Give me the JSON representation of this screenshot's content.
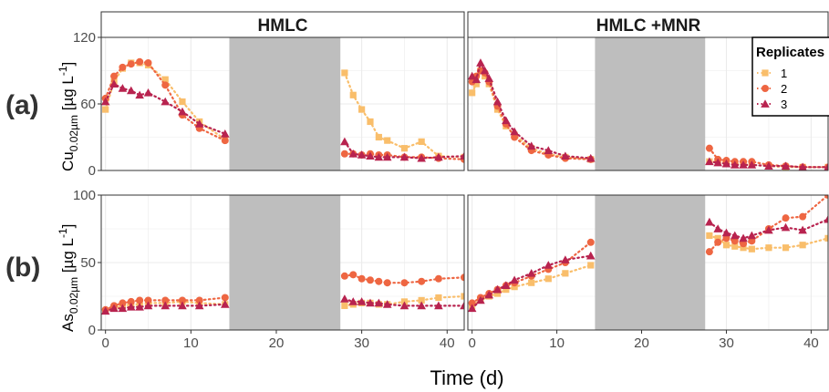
{
  "figure": {
    "row_labels": [
      "(a)",
      "(b)"
    ],
    "panel_titles": [
      "HMLC",
      "HMLC +MNR"
    ],
    "xlabel": "Time (d)",
    "legend": {
      "title": "Replicates",
      "position": "top-right",
      "entries": [
        "1",
        "2",
        "3"
      ]
    },
    "ylabel_a": {
      "main": "Cu",
      "sub": "0.02µm",
      "unit_open": " [µg L",
      "unit_sup": "-1",
      "unit_close": "]"
    },
    "ylabel_b": {
      "main": "As",
      "sub": "0.02µm",
      "unit_open": " [µg L",
      "unit_sup": "-1",
      "unit_close": "]"
    },
    "colors": {
      "rep1": "#F9BE6B",
      "rep2": "#EE6642",
      "rep3": "#B8234F",
      "shade": "#BEBEBE",
      "grid": "#EBEBEB",
      "strip": "#FFFFFF"
    }
  },
  "chart_data": [
    {
      "type": "scatter",
      "row": "(a)",
      "panel": "HMLC",
      "xlim": [
        -0.5,
        42
      ],
      "ylim": [
        0,
        120
      ],
      "xticks": [
        0,
        10,
        20,
        30,
        40
      ],
      "yticks": [
        0,
        60,
        120
      ],
      "shaded_region": [
        14.5,
        27.5
      ],
      "series": [
        {
          "name": "1",
          "x": [
            0,
            1,
            2,
            3,
            4,
            5,
            7,
            9,
            11,
            14,
            28,
            29,
            30,
            31,
            32,
            33,
            35,
            37,
            39,
            42
          ],
          "y": [
            55,
            80,
            92,
            97,
            97,
            95,
            82,
            62,
            44,
            28,
            88,
            68,
            55,
            44,
            30,
            27,
            20,
            26,
            13,
            12
          ]
        },
        {
          "name": "2",
          "x": [
            0,
            1,
            2,
            3,
            4,
            5,
            7,
            9,
            11,
            14,
            28,
            29,
            30,
            31,
            32,
            33,
            35,
            37,
            39,
            42
          ],
          "y": [
            65,
            85,
            93,
            96,
            98,
            97,
            77,
            50,
            38,
            27,
            15,
            15,
            14,
            15,
            14,
            14,
            12,
            12,
            11,
            10
          ]
        },
        {
          "name": "3",
          "x": [
            0,
            1,
            2,
            3,
            4,
            5,
            7,
            9,
            11,
            14,
            28,
            29,
            30,
            31,
            32,
            33,
            35,
            37,
            39,
            42
          ],
          "y": [
            62,
            78,
            74,
            72,
            68,
            70,
            62,
            53,
            42,
            33,
            26,
            15,
            14,
            13,
            12,
            12,
            12,
            11,
            12,
            13
          ]
        }
      ]
    },
    {
      "type": "scatter",
      "row": "(a)",
      "panel": "HMLC +MNR",
      "xlim": [
        -0.5,
        42
      ],
      "ylim": [
        0,
        120
      ],
      "xticks": [
        0,
        10,
        20,
        30,
        40
      ],
      "yticks": [
        0,
        60,
        120
      ],
      "shaded_region": [
        14.5,
        27.5
      ],
      "series": [
        {
          "name": "1",
          "x": [
            0,
            0.5,
            1,
            1.5,
            2,
            3,
            4,
            5,
            7,
            9,
            11,
            14,
            28,
            29,
            30,
            31,
            32,
            33,
            35,
            37,
            39,
            42
          ],
          "y": [
            70,
            78,
            90,
            85,
            78,
            55,
            40,
            32,
            20,
            15,
            12,
            10,
            8,
            8,
            7,
            6,
            5,
            5,
            4,
            3,
            3,
            3
          ]
        },
        {
          "name": "2",
          "x": [
            0,
            0.5,
            1,
            1.5,
            2,
            3,
            4,
            5,
            7,
            9,
            11,
            14,
            28,
            29,
            30,
            31,
            32,
            33,
            35,
            37,
            39,
            42
          ],
          "y": [
            80,
            85,
            90,
            88,
            80,
            58,
            42,
            30,
            18,
            14,
            11,
            10,
            20,
            10,
            9,
            8,
            8,
            8,
            5,
            4,
            3,
            3
          ]
        },
        {
          "name": "3",
          "x": [
            0,
            0.5,
            1,
            1.5,
            2,
            3,
            4,
            5,
            7,
            9,
            11,
            14,
            28,
            29,
            30,
            31,
            32,
            33,
            35,
            37,
            39,
            42
          ],
          "y": [
            85,
            82,
            97,
            90,
            83,
            62,
            45,
            35,
            22,
            18,
            13,
            11,
            8,
            7,
            6,
            5,
            5,
            5,
            4,
            4,
            3,
            3
          ]
        }
      ]
    },
    {
      "type": "scatter",
      "row": "(b)",
      "panel": "HMLC",
      "xlim": [
        -0.5,
        42
      ],
      "ylim": [
        0,
        100
      ],
      "xticks": [
        0,
        10,
        20,
        30,
        40
      ],
      "yticks": [
        0,
        50,
        100
      ],
      "shaded_region": [
        14.5,
        27.5
      ],
      "series": [
        {
          "name": "1",
          "x": [
            0,
            1,
            2,
            3,
            4,
            5,
            7,
            9,
            11,
            14,
            28,
            29,
            30,
            31,
            32,
            33,
            35,
            37,
            39,
            42
          ],
          "y": [
            14,
            16,
            18,
            19,
            19,
            20,
            20,
            21,
            20,
            19,
            18,
            19,
            20,
            20,
            19,
            19,
            21,
            22,
            24,
            25
          ]
        },
        {
          "name": "2",
          "x": [
            0,
            1,
            2,
            3,
            4,
            5,
            7,
            9,
            11,
            14,
            28,
            29,
            30,
            31,
            32,
            33,
            35,
            37,
            39,
            42
          ],
          "y": [
            15,
            18,
            20,
            21,
            22,
            22,
            22,
            22,
            22,
            24,
            40,
            41,
            38,
            37,
            36,
            35,
            35,
            36,
            38,
            39
          ]
        },
        {
          "name": "3",
          "x": [
            0,
            1,
            2,
            3,
            4,
            5,
            7,
            9,
            11,
            14,
            28,
            29,
            30,
            31,
            32,
            33,
            35,
            37,
            39,
            42
          ],
          "y": [
            14,
            16,
            16,
            17,
            17,
            18,
            18,
            18,
            18,
            19,
            23,
            21,
            21,
            20,
            20,
            19,
            18,
            18,
            18,
            18
          ]
        }
      ]
    },
    {
      "type": "scatter",
      "row": "(b)",
      "panel": "HMLC +MNR",
      "xlim": [
        -0.5,
        42
      ],
      "ylim": [
        0,
        100
      ],
      "xticks": [
        0,
        10,
        20,
        30,
        40
      ],
      "yticks": [
        0,
        50,
        100
      ],
      "shaded_region": [
        14.5,
        27.5
      ],
      "series": [
        {
          "name": "1",
          "x": [
            0,
            1,
            2,
            3,
            4,
            5,
            7,
            9,
            11,
            14,
            28,
            29,
            30,
            31,
            32,
            33,
            35,
            37,
            39,
            42
          ],
          "y": [
            18,
            22,
            25,
            27,
            30,
            32,
            35,
            38,
            42,
            48,
            70,
            68,
            63,
            62,
            61,
            60,
            61,
            61,
            63,
            68
          ]
        },
        {
          "name": "2",
          "x": [
            0,
            1,
            2,
            3,
            4,
            5,
            7,
            9,
            11,
            14,
            28,
            29,
            30,
            31,
            32,
            33,
            35,
            37,
            39,
            42
          ],
          "y": [
            20,
            24,
            27,
            30,
            33,
            35,
            40,
            45,
            50,
            65,
            58,
            65,
            68,
            66,
            64,
            66,
            75,
            83,
            84,
            100
          ]
        },
        {
          "name": "3",
          "x": [
            0,
            1,
            2,
            3,
            4,
            5,
            7,
            9,
            11,
            14,
            28,
            29,
            30,
            31,
            32,
            33,
            35,
            37,
            39,
            42
          ],
          "y": [
            16,
            22,
            26,
            30,
            33,
            37,
            42,
            48,
            52,
            55,
            80,
            75,
            72,
            70,
            68,
            70,
            74,
            76,
            74,
            82
          ]
        }
      ]
    }
  ]
}
